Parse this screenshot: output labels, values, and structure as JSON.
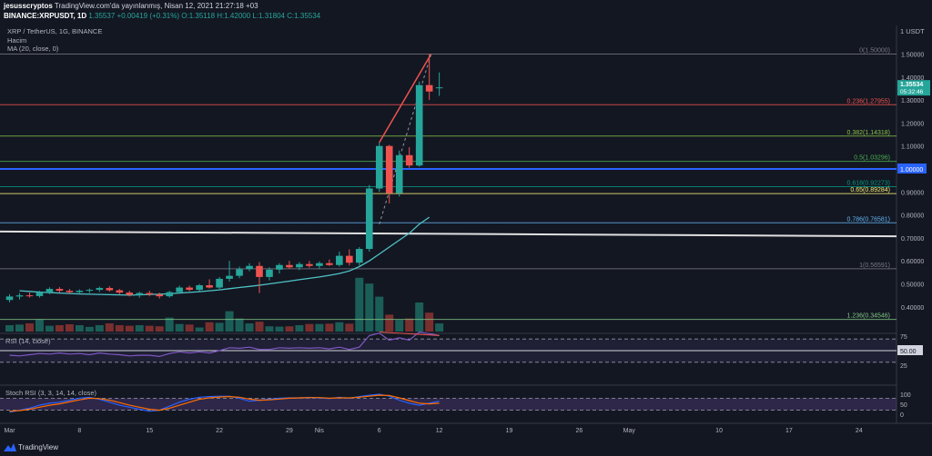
{
  "header": {
    "publisher": "jesusscryptos",
    "published_text": "TradingView.com'da yayınlanmış, Nisan 12, 2021 21:27:18 +03",
    "symbol": "BINANCE:XRPUSDT, 1D",
    "last": "1.35537",
    "change": "+0.00419 (+0.31%)",
    "ohlc": "O:1.35118 H:1.42000 L:1.31804 C:1.35534"
  },
  "indicators": {
    "pair": "XRP / TetherUS, 1G, BINANCE",
    "volume": "Hacim",
    "ma": "MA (20, close, 0)",
    "rsi": "RSI (14, close)",
    "stoch": "Stoch RSI (3, 3, 14, 14, close)"
  },
  "currency": "1 USDT",
  "brand": "TradingView",
  "colors": {
    "up": "#26a69a",
    "down": "#ef5350",
    "background": "#131722",
    "ma": "#4fc3c7",
    "blue_line": "#2962ff"
  },
  "chart_data": {
    "type": "candlestick",
    "price_axis": [
      "1.50000",
      "1.40000",
      "1.30000",
      "1.20000",
      "1.10000",
      "1.00000",
      "0.90000",
      "0.80000",
      "0.70000",
      "0.60000",
      "0.50000",
      "0.40000"
    ],
    "price_ticks": [
      1.5,
      1.4,
      1.3,
      1.2,
      1.1,
      1.0,
      0.9,
      0.8,
      0.7,
      0.6,
      0.5,
      0.4
    ],
    "date_axis": [
      {
        "label": "Mar",
        "index": 0
      },
      {
        "label": "8",
        "index": 7
      },
      {
        "label": "15",
        "index": 14
      },
      {
        "label": "22",
        "index": 21
      },
      {
        "label": "29",
        "index": 28
      },
      {
        "label": "Nis",
        "index": 31
      },
      {
        "label": "6",
        "index": 37
      },
      {
        "label": "12",
        "index": 43
      },
      {
        "label": "19",
        "index": 50
      },
      {
        "label": "26",
        "index": 57
      },
      {
        "label": "May",
        "index": 62
      },
      {
        "label": "10",
        "index": 71
      },
      {
        "label": "17",
        "index": 78
      },
      {
        "label": "24",
        "index": 85
      }
    ],
    "last_price_label": "1.35534",
    "countdown": "05:32:46",
    "level_label": "1.00000",
    "candles": [
      {
        "o": 0.43,
        "h": 0.455,
        "l": 0.42,
        "c": 0.445
      },
      {
        "o": 0.445,
        "h": 0.46,
        "l": 0.432,
        "c": 0.45
      },
      {
        "o": 0.45,
        "h": 0.462,
        "l": 0.44,
        "c": 0.447
      },
      {
        "o": 0.447,
        "h": 0.47,
        "l": 0.44,
        "c": 0.462
      },
      {
        "o": 0.462,
        "h": 0.485,
        "l": 0.455,
        "c": 0.478
      },
      {
        "o": 0.478,
        "h": 0.486,
        "l": 0.462,
        "c": 0.47
      },
      {
        "o": 0.47,
        "h": 0.478,
        "l": 0.458,
        "c": 0.464
      },
      {
        "o": 0.464,
        "h": 0.476,
        "l": 0.455,
        "c": 0.47
      },
      {
        "o": 0.47,
        "h": 0.48,
        "l": 0.46,
        "c": 0.474
      },
      {
        "o": 0.474,
        "h": 0.488,
        "l": 0.465,
        "c": 0.482
      },
      {
        "o": 0.482,
        "h": 0.49,
        "l": 0.466,
        "c": 0.472
      },
      {
        "o": 0.472,
        "h": 0.478,
        "l": 0.455,
        "c": 0.462
      },
      {
        "o": 0.462,
        "h": 0.47,
        "l": 0.445,
        "c": 0.452
      },
      {
        "o": 0.452,
        "h": 0.466,
        "l": 0.44,
        "c": 0.46
      },
      {
        "o": 0.46,
        "h": 0.47,
        "l": 0.446,
        "c": 0.454
      },
      {
        "o": 0.454,
        "h": 0.462,
        "l": 0.436,
        "c": 0.446
      },
      {
        "o": 0.446,
        "h": 0.47,
        "l": 0.44,
        "c": 0.464
      },
      {
        "o": 0.464,
        "h": 0.492,
        "l": 0.458,
        "c": 0.484
      },
      {
        "o": 0.484,
        "h": 0.492,
        "l": 0.468,
        "c": 0.474
      },
      {
        "o": 0.474,
        "h": 0.5,
        "l": 0.468,
        "c": 0.494
      },
      {
        "o": 0.494,
        "h": 0.52,
        "l": 0.48,
        "c": 0.484
      },
      {
        "o": 0.484,
        "h": 0.53,
        "l": 0.478,
        "c": 0.522
      },
      {
        "o": 0.522,
        "h": 0.6,
        "l": 0.51,
        "c": 0.535
      },
      {
        "o": 0.535,
        "h": 0.575,
        "l": 0.525,
        "c": 0.564
      },
      {
        "o": 0.564,
        "h": 0.59,
        "l": 0.555,
        "c": 0.578
      },
      {
        "o": 0.578,
        "h": 0.595,
        "l": 0.46,
        "c": 0.53
      },
      {
        "o": 0.53,
        "h": 0.572,
        "l": 0.515,
        "c": 0.562
      },
      {
        "o": 0.562,
        "h": 0.59,
        "l": 0.545,
        "c": 0.582
      },
      {
        "o": 0.582,
        "h": 0.6,
        "l": 0.565,
        "c": 0.572
      },
      {
        "o": 0.572,
        "h": 0.595,
        "l": 0.56,
        "c": 0.586
      },
      {
        "o": 0.586,
        "h": 0.6,
        "l": 0.57,
        "c": 0.578
      },
      {
        "o": 0.578,
        "h": 0.598,
        "l": 0.565,
        "c": 0.59
      },
      {
        "o": 0.59,
        "h": 0.606,
        "l": 0.578,
        "c": 0.582
      },
      {
        "o": 0.582,
        "h": 0.64,
        "l": 0.575,
        "c": 0.622
      },
      {
        "o": 0.622,
        "h": 0.65,
        "l": 0.58,
        "c": 0.592
      },
      {
        "o": 0.592,
        "h": 0.66,
        "l": 0.58,
        "c": 0.652
      },
      {
        "o": 0.652,
        "h": 0.93,
        "l": 0.64,
        "c": 0.915
      },
      {
        "o": 0.915,
        "h": 1.115,
        "l": 0.9,
        "c": 1.1
      },
      {
        "o": 1.1,
        "h": 1.105,
        "l": 0.85,
        "c": 0.895
      },
      {
        "o": 0.895,
        "h": 1.08,
        "l": 0.88,
        "c": 1.06
      },
      {
        "o": 1.06,
        "h": 1.095,
        "l": 1.005,
        "c": 1.015
      },
      {
        "o": 1.015,
        "h": 1.38,
        "l": 1.01,
        "c": 1.365
      },
      {
        "o": 1.365,
        "h": 1.5,
        "l": 1.3,
        "c": 1.337
      },
      {
        "o": 1.351,
        "h": 1.42,
        "l": 1.318,
        "c": 1.355
      }
    ],
    "volumes": [
      0.22,
      0.24,
      0.28,
      0.42,
      0.2,
      0.22,
      0.25,
      0.22,
      0.16,
      0.22,
      0.28,
      0.22,
      0.2,
      0.22,
      0.2,
      0.18,
      0.48,
      0.26,
      0.24,
      0.14,
      0.32,
      0.3,
      0.7,
      0.45,
      0.28,
      0.34,
      0.18,
      0.17,
      0.18,
      0.22,
      0.26,
      0.26,
      0.27,
      0.32,
      0.27,
      1.85,
      1.65,
      1.2,
      0.58,
      0.4,
      0.45,
      1.0,
      0.65,
      0.28
    ],
    "ma20": [
      null,
      0.47,
      0.467,
      0.464,
      0.462,
      0.46,
      0.458,
      0.456,
      0.455,
      0.454,
      0.453,
      0.452,
      0.451,
      0.452,
      0.454,
      0.455,
      0.457,
      0.46,
      0.463,
      0.466,
      0.47,
      0.474,
      0.479,
      0.484,
      0.489,
      0.494,
      0.5,
      0.506,
      0.512,
      0.518,
      0.524,
      0.53,
      0.537,
      0.545,
      0.556,
      0.575,
      0.6,
      0.63,
      0.66,
      0.69,
      0.72,
      0.76,
      0.79,
      null
    ],
    "fib": [
      {
        "label": "0(1.50000)",
        "value": 1.5,
        "color": "#787b86"
      },
      {
        "label": "0.236(1.27955)",
        "value": 1.27955,
        "color": "#ef5350"
      },
      {
        "label": "0.382(1.14318)",
        "value": 1.14318,
        "color": "#8bc34a"
      },
      {
        "label": "0.5(1.03296)",
        "value": 1.03296,
        "color": "#4caf50"
      },
      {
        "label": "0.618(0.92273)",
        "value": 0.92273,
        "color": "#089981"
      },
      {
        "label": "0.65(0.89284)",
        "value": 0.89284,
        "color": "#fff176"
      },
      {
        "label": "0.786(0.76581)",
        "value": 0.76581,
        "color": "#64b5f6"
      },
      {
        "label": "1(0.56591)",
        "value": 0.56591,
        "color": "#787b86"
      },
      {
        "label": "1.236(0.34546)",
        "value": 0.34546,
        "color": "#81c784"
      }
    ],
    "rsi_axis": [
      "75",
      "50.00",
      "25"
    ],
    "rsi_level": "50.00",
    "rsi": [
      42,
      41,
      43,
      45,
      44,
      46,
      44,
      45,
      43,
      46,
      44,
      43,
      41,
      42,
      42,
      40,
      45,
      48,
      46,
      48,
      46,
      50,
      55,
      54,
      56,
      52,
      52,
      55,
      54,
      55,
      54,
      55,
      53,
      56,
      52,
      56,
      76,
      80,
      68,
      72,
      68,
      82,
      79,
      76
    ],
    "stoch_axis": [
      "100",
      "50",
      "0"
    ],
    "stoch_k": [
      10,
      20,
      30,
      45,
      55,
      60,
      70,
      80,
      85,
      75,
      60,
      45,
      35,
      25,
      15,
      20,
      40,
      60,
      75,
      85,
      88,
      90,
      90,
      80,
      65,
      70,
      75,
      80,
      82,
      82,
      84,
      82,
      78,
      85,
      80,
      88,
      95,
      100,
      90,
      70,
      55,
      45,
      55,
      65
    ],
    "stoch_d": [
      15,
      18,
      25,
      35,
      45,
      52,
      62,
      72,
      80,
      78,
      70,
      58,
      45,
      35,
      25,
      20,
      30,
      45,
      60,
      75,
      82,
      86,
      88,
      85,
      76,
      70,
      72,
      76,
      80,
      82,
      83,
      83,
      80,
      82,
      82,
      85,
      90,
      95,
      94,
      82,
      68,
      55,
      52,
      55
    ]
  }
}
